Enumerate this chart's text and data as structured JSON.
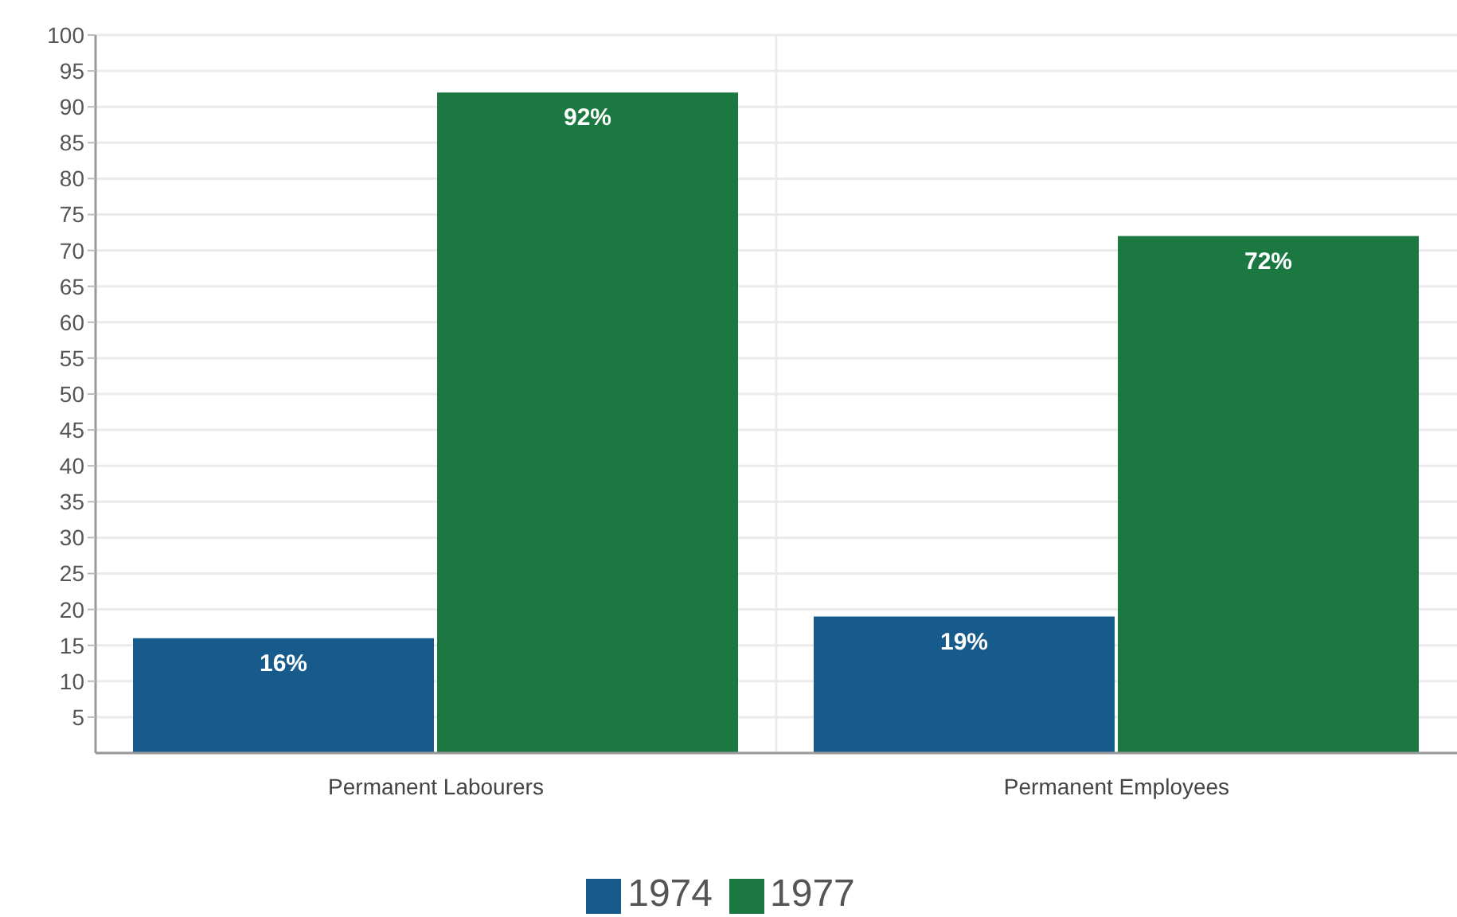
{
  "chart_data": {
    "type": "bar",
    "categories": [
      "Permanent Labourers",
      "Permanent Employees"
    ],
    "series": [
      {
        "name": "1974",
        "color": "#175a8c",
        "values": [
          16,
          19
        ],
        "value_labels": [
          "16%",
          "19%"
        ]
      },
      {
        "name": "1977",
        "color": "#1b7840",
        "values": [
          92,
          72
        ],
        "value_labels": [
          "92%",
          "72%"
        ]
      }
    ],
    "ylim": [
      0,
      100
    ],
    "yticks": [
      5,
      10,
      15,
      20,
      25,
      30,
      35,
      40,
      45,
      50,
      55,
      60,
      65,
      70,
      75,
      80,
      85,
      90,
      95,
      100
    ],
    "grid": true,
    "legend": "bottom"
  }
}
